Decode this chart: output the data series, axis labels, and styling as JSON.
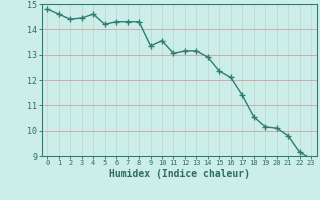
{
  "x": [
    0,
    1,
    2,
    3,
    4,
    5,
    6,
    7,
    8,
    9,
    10,
    11,
    12,
    13,
    14,
    15,
    16,
    17,
    18,
    19,
    20,
    21,
    22,
    23
  ],
  "y": [
    14.8,
    14.6,
    14.4,
    14.45,
    14.6,
    14.2,
    14.3,
    14.3,
    14.3,
    13.35,
    13.55,
    13.05,
    13.15,
    13.15,
    12.9,
    12.35,
    12.1,
    11.4,
    10.55,
    10.15,
    10.1,
    9.8,
    9.15,
    8.9
  ],
  "line_color": "#2e7d6e",
  "marker": "+",
  "marker_size": 4,
  "bg_color": "#cceee8",
  "grid_color": "#c0d8d4",
  "tick_color": "#2e6b60",
  "xlabel": "Humidex (Indice chaleur)",
  "xlabel_fontsize": 7,
  "ylim": [
    9,
    15
  ],
  "xlim": [
    -0.5,
    23.5
  ],
  "yticks": [
    9,
    10,
    11,
    12,
    13,
    14,
    15
  ],
  "xticks": [
    0,
    1,
    2,
    3,
    4,
    5,
    6,
    7,
    8,
    9,
    10,
    11,
    12,
    13,
    14,
    15,
    16,
    17,
    18,
    19,
    20,
    21,
    22,
    23
  ],
  "spine_color": "#2e7d6e",
  "linewidth": 1.0
}
